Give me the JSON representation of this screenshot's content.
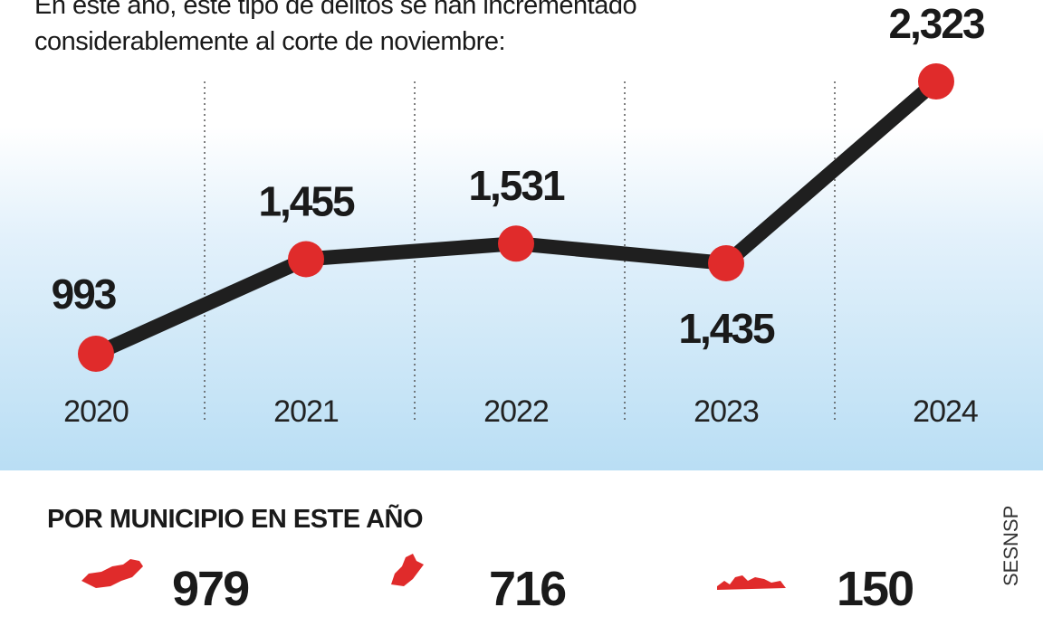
{
  "intro": {
    "line1": "En este año, este tipo de delitos se han incrementado",
    "line2": "considerablemente al corte de noviembre:"
  },
  "chart_data": {
    "type": "line",
    "x": [
      "2020",
      "2021",
      "2022",
      "2023",
      "2024"
    ],
    "series": [
      {
        "values": [
          993,
          1455,
          1531,
          1435,
          2323
        ]
      }
    ],
    "value_labels": [
      "993",
      "1,455",
      "1,531",
      "1,435",
      "2,323"
    ],
    "title": "",
    "xlabel": "",
    "ylabel": "",
    "grid": "vertical dotted separators",
    "colors": {
      "line": "#1f1f1f",
      "marker": "#e02b2b"
    }
  },
  "municipios": {
    "title": "POR MUNICIPIO EN ESTE AÑO",
    "values": [
      "979",
      "716",
      "150"
    ],
    "map_color": "#e02b2b"
  },
  "source": "SESNSP"
}
